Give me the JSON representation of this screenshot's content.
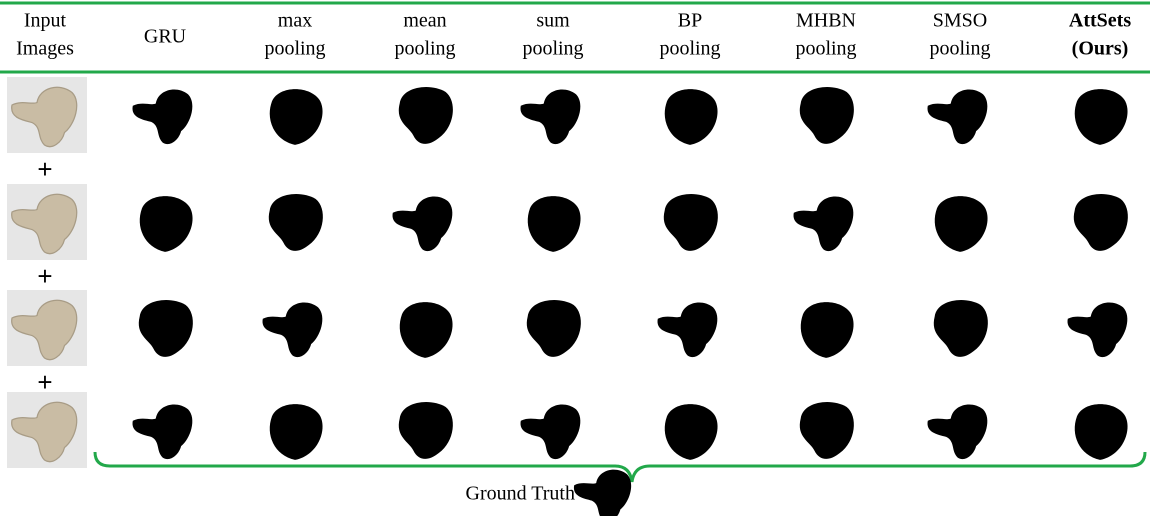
{
  "headers": [
    [
      "Input",
      "Images"
    ],
    [
      "GRU"
    ],
    [
      "max",
      "pooling"
    ],
    [
      "mean",
      "pooling"
    ],
    [
      "sum",
      "pooling"
    ],
    [
      "BP",
      "pooling"
    ],
    [
      "MHBN",
      "pooling"
    ],
    [
      "SMSO",
      "pooling"
    ],
    [
      "AttSets",
      "(Ours)"
    ]
  ],
  "plus_sign": "+",
  "ground_truth_label": "Ground Truth"
}
